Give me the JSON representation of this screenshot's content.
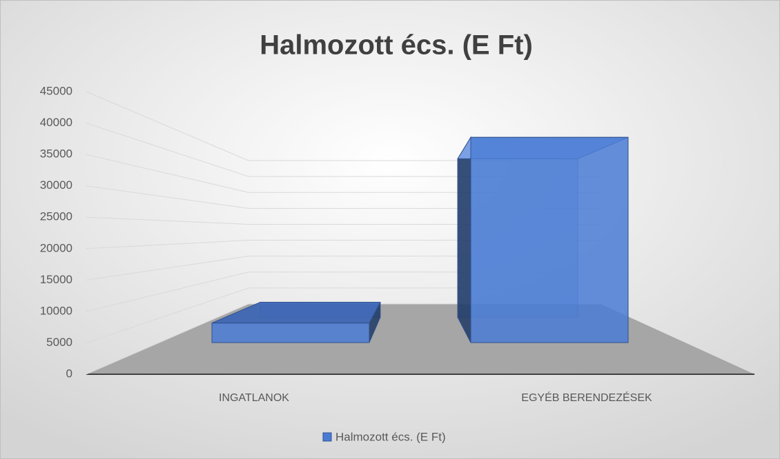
{
  "chart_data": {
    "type": "bar3d",
    "title": "Halmozott écs. (E Ft)",
    "categories": [
      "INGATLANOK",
      "EGYÉB BERENDEZÉSEK"
    ],
    "series": [
      {
        "name": "Halmozott écs. (E Ft)",
        "color": "#4a7bd4",
        "values": [
          4000,
          42000
        ]
      }
    ],
    "ylim": [
      0,
      45000
    ],
    "yticks": [
      0,
      5000,
      10000,
      15000,
      20000,
      25000,
      30000,
      35000,
      40000,
      45000
    ],
    "grid": true,
    "legend": "bottom"
  }
}
